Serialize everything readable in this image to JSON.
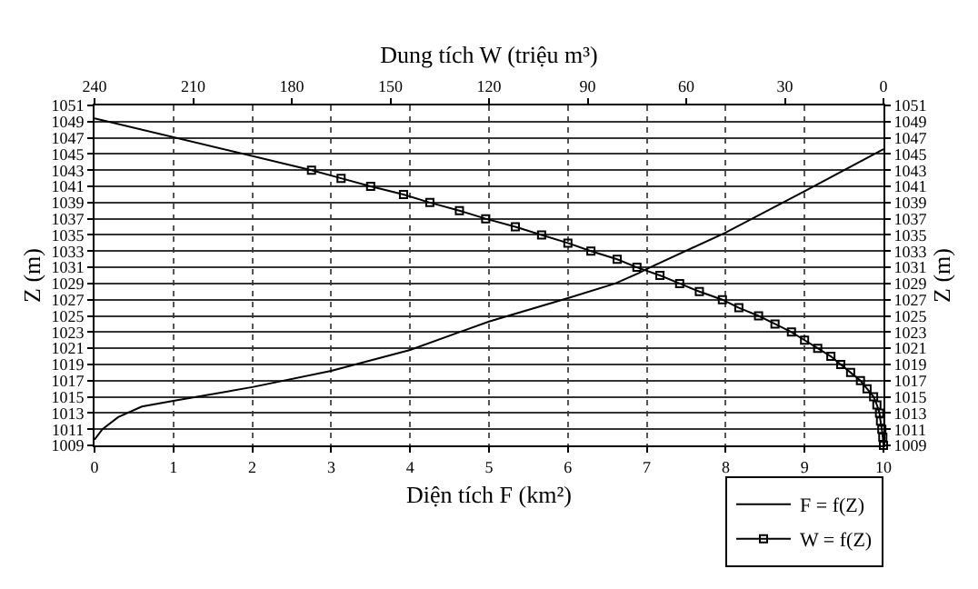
{
  "chart_data": {
    "type": "line",
    "xlabel": "Diện tích F (km²)",
    "x2label": "Dung tích W (triệu m³)",
    "ylabel": "Z (m)",
    "y2label": "Z (m)",
    "xlim": [
      0,
      10
    ],
    "xticks": [
      0,
      1,
      2,
      3,
      4,
      5,
      6,
      7,
      8,
      9,
      10
    ],
    "x2lim": [
      240,
      0
    ],
    "x2ticks": [
      240,
      210,
      180,
      150,
      120,
      90,
      60,
      30,
      0
    ],
    "ylim": [
      1009,
      1051
    ],
    "yticks": [
      1009,
      1011,
      1013,
      1015,
      1017,
      1019,
      1021,
      1023,
      1025,
      1027,
      1029,
      1031,
      1033,
      1035,
      1037,
      1039,
      1041,
      1043,
      1045,
      1047,
      1049,
      1051
    ],
    "y2lim": [
      1009,
      1051
    ],
    "y2ticks": [
      1009,
      1011,
      1013,
      1015,
      1017,
      1019,
      1021,
      1023,
      1025,
      1027,
      1029,
      1031,
      1033,
      1035,
      1037,
      1039,
      1041,
      1043,
      1045,
      1047,
      1049,
      1051
    ],
    "grid": true,
    "legend": "bottom right",
    "series": [
      {
        "name": "F = f(Z)",
        "color": "#000000",
        "marker": "none",
        "x": [
          0,
          0.1,
          0.3,
          0.6,
          1,
          2,
          3,
          4,
          5,
          6,
          6.6,
          6.9,
          7,
          8,
          9,
          10
        ],
        "values": [
          1009.7,
          1011,
          1012.5,
          1013.8,
          1014.5,
          1016.2,
          1018.2,
          1020.8,
          1024.3,
          1027.2,
          1029,
          1030.3,
          1030.8,
          1035.3,
          1040.4,
          1045.6
        ]
      },
      {
        "color": "#000000",
        "axis": "x2",
        "x": [
          240,
          174
        ],
        "values": [
          1049.4,
          1043
        ]
      },
      {
        "name": "W = f(Z)",
        "color": "#000000",
        "marker": "square",
        "axis": "x2",
        "x": [
          174,
          165,
          156,
          146,
          138,
          129,
          121,
          112,
          104,
          96,
          89,
          81,
          75,
          68,
          62,
          56,
          49,
          44,
          38,
          33,
          28,
          24,
          20,
          16,
          13,
          10,
          7,
          5,
          3,
          2,
          1.2,
          0.9,
          0.5,
          0.2,
          0
        ],
        "values": [
          1043,
          1042,
          1041,
          1040,
          1039,
          1038,
          1037,
          1036,
          1035,
          1034,
          1033,
          1032,
          1031,
          1030,
          1029,
          1028,
          1027,
          1026,
          1025,
          1024,
          1023,
          1022,
          1021,
          1020,
          1019,
          1018,
          1017,
          1016,
          1015,
          1014,
          1013,
          1012,
          1011,
          1010,
          1009
        ]
      }
    ]
  }
}
